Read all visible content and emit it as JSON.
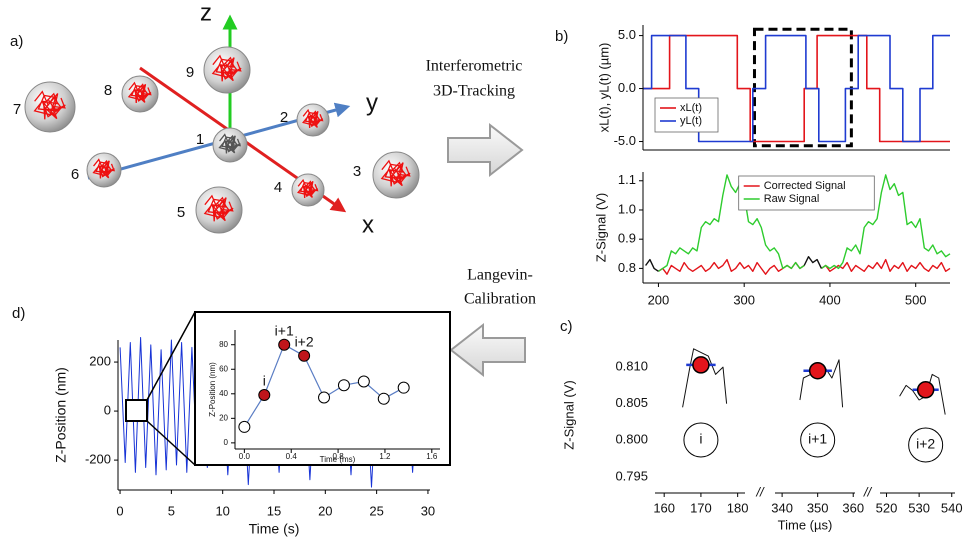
{
  "panels": [
    "a)",
    "b)",
    "c)",
    "d)"
  ],
  "diagram": {
    "axes": {
      "x": "x",
      "y": "y",
      "z": "z"
    },
    "nodes": [
      {
        "label": "1"
      },
      {
        "label": "2"
      },
      {
        "label": "3"
      },
      {
        "label": "4"
      },
      {
        "label": "5"
      },
      {
        "label": "6"
      },
      {
        "label": "7"
      },
      {
        "label": "8"
      },
      {
        "label": "9"
      }
    ]
  },
  "flow": [
    {
      "lines": [
        "Interferometric",
        "3D-Tracking"
      ]
    },
    {
      "lines": [
        "Langevin-",
        "Calibration"
      ]
    }
  ],
  "chart_data": [
    {
      "type": "line",
      "ylabel": "xL(t), yL(t) (µm)",
      "xlim": [
        182,
        540
      ],
      "ylim": [
        -5.8,
        6.0
      ],
      "yticks": [
        {
          "value": 5,
          "label": "5.0"
        },
        {
          "value": 0,
          "label": "0.0"
        },
        {
          "value": -5,
          "label": "-5.0"
        }
      ],
      "legend": "lower left",
      "highlight": {
        "x": [
          312,
          425
        ],
        "y": [
          -5.4,
          5.6
        ]
      },
      "series": [
        {
          "name": "xL(t)",
          "color": "#e3151b",
          "x": [
            182,
            213,
            213,
            292,
            292,
            307,
            307,
            370,
            370,
            385,
            385,
            443,
            443,
            458,
            458,
            540
          ],
          "values": [
            0,
            0,
            5,
            5,
            0,
            0,
            -5,
            -5,
            0,
            0,
            5,
            5,
            0,
            0,
            -5,
            -5
          ]
        },
        {
          "name": "yL(t)",
          "color": "#1f3bd1",
          "x": [
            182,
            192,
            192,
            232,
            232,
            247,
            247,
            310,
            310,
            325,
            325,
            372,
            372,
            387,
            387,
            418,
            418,
            433,
            433,
            470,
            470,
            485,
            485,
            505,
            505,
            520,
            520,
            540
          ],
          "values": [
            0,
            0,
            5,
            5,
            0,
            0,
            -5,
            -5,
            0,
            0,
            5,
            5,
            0,
            0,
            -5,
            -5,
            0,
            0,
            5,
            5,
            0,
            0,
            -5,
            -5,
            0,
            0,
            5,
            5
          ]
        }
      ]
    },
    {
      "type": "line",
      "ylabel": "Z-Signal (V)",
      "xlim": [
        182,
        540
      ],
      "ylim": [
        0.75,
        1.13
      ],
      "xticks": [
        200,
        300,
        400,
        500
      ],
      "yticks": [
        {
          "value": 0.8,
          "label": "0.8"
        },
        {
          "value": 0.9,
          "label": "0.9"
        },
        {
          "value": 1,
          "label": "1.0"
        },
        {
          "value": 1.1,
          "label": "1.1"
        }
      ],
      "legend": "upper center",
      "x": [
        185,
        190,
        195,
        200,
        205,
        210,
        215,
        220,
        225,
        230,
        235,
        240,
        245,
        250,
        255,
        260,
        265,
        270,
        275,
        280,
        285,
        290,
        295,
        300,
        305,
        310,
        315,
        320,
        325,
        330,
        335,
        340,
        345,
        350,
        355,
        360,
        365,
        370,
        375,
        380,
        385,
        390,
        395,
        400,
        405,
        410,
        415,
        420,
        425,
        430,
        435,
        440,
        445,
        450,
        455,
        460,
        465,
        470,
        475,
        480,
        485,
        490,
        495,
        500,
        505,
        510,
        515,
        520,
        525,
        530,
        535,
        540
      ],
      "series": [
        {
          "name": "Corrected Signal",
          "color": "#e3151b",
          "values": [
            null,
            null,
            null,
            0.79,
            0.8,
            0.78,
            0.81,
            0.8,
            0.79,
            0.82,
            0.8,
            0.79,
            0.8,
            0.81,
            0.79,
            0.8,
            0.82,
            0.8,
            0.81,
            0.83,
            0.79,
            0.8,
            0.82,
            0.8,
            0.81,
            0.79,
            0.82,
            0.8,
            0.78,
            0.8,
            0.81,
            0.79,
            0.8,
            0.81,
            0.8,
            0.82,
            0.8,
            0.81,
            null,
            null,
            null,
            0.8,
            0.81,
            0.79,
            0.8,
            0.81,
            0.8,
            0.82,
            0.79,
            0.81,
            0.8,
            0.79,
            0.81,
            0.8,
            0.82,
            0.8,
            0.83,
            0.79,
            0.81,
            0.8,
            0.82,
            0.79,
            0.81,
            0.8,
            0.82,
            0.8,
            0.79,
            0.81,
            0.8,
            0.82,
            0.79,
            0.8
          ]
        },
        {
          "name": "Raw Signal",
          "color": "#2ecc2e",
          "values": [
            null,
            null,
            null,
            0.79,
            0.8,
            0.81,
            0.86,
            0.85,
            0.87,
            0.86,
            0.85,
            0.87,
            0.86,
            0.94,
            0.96,
            0.95,
            0.97,
            0.96,
            1.05,
            1.12,
            1.08,
            1.06,
            1.09,
            1.05,
            0.96,
            0.95,
            0.97,
            0.94,
            0.88,
            0.86,
            0.87,
            0.85,
            0.8,
            0.81,
            0.8,
            0.82,
            0.8,
            0.81,
            null,
            null,
            null,
            0.8,
            0.81,
            0.8,
            0.81,
            0.8,
            0.82,
            0.87,
            0.86,
            0.88,
            0.85,
            0.94,
            0.96,
            0.95,
            0.97,
            1.06,
            1.12,
            1.07,
            1.09,
            1.05,
            1.06,
            0.95,
            0.96,
            0.94,
            0.97,
            0.87,
            0.86,
            0.88,
            0.85,
            0.86,
            0.84,
            0.85
          ]
        },
        {
          "color": "#111111",
          "values": [
            0.81,
            0.83,
            0.8,
            0.79,
            null,
            null,
            null,
            null,
            null,
            null,
            null,
            null,
            null,
            null,
            null,
            null,
            null,
            null,
            null,
            null,
            null,
            null,
            null,
            null,
            null,
            null,
            null,
            null,
            null,
            null,
            null,
            null,
            null,
            null,
            null,
            null,
            null,
            0.81,
            0.84,
            0.82,
            0.83,
            0.8,
            null,
            null,
            null,
            null,
            null,
            null,
            null,
            null,
            null,
            null,
            null,
            null,
            null,
            null,
            null,
            null,
            null,
            null,
            null,
            null,
            null,
            null,
            null,
            null,
            null,
            null,
            null,
            null,
            null,
            null
          ]
        }
      ]
    },
    {
      "type": "scatter",
      "ylabel": "Z-Signal (V)",
      "xlabel": "Time (µs)",
      "ylim": [
        0.7932,
        0.8137
      ],
      "yticks": [
        {
          "value": 0.81,
          "label": "0.810"
        },
        0.805,
        {
          "value": 0.8,
          "label": "0.800"
        },
        0.795
      ],
      "axis_break": "//",
      "segments": [
        {
          "xlim": [
            157.5,
            182
          ],
          "xticks": [
            160,
            170,
            180
          ]
        },
        {
          "xlim": [
            338,
            360.5
          ],
          "xticks": [
            340,
            350,
            360
          ]
        },
        {
          "xlim": [
            518,
            541
          ],
          "xticks": [
            520,
            530,
            540
          ]
        }
      ],
      "traces": [
        {
          "x": [
            165,
            167,
            168,
            170,
            172,
            174,
            176,
            177
          ],
          "values": [
            0.8045,
            0.81,
            0.8125,
            0.812,
            0.8115,
            0.809,
            0.81,
            0.805
          ]
        },
        {
          "x": [
            345,
            346,
            348,
            350,
            352,
            354,
            356,
            357
          ],
          "values": [
            0.8055,
            0.8085,
            0.809,
            0.8102,
            0.81,
            0.8085,
            0.811,
            0.8045
          ]
        },
        {
          "x": [
            524,
            526,
            528,
            530,
            532,
            534,
            536,
            538
          ],
          "values": [
            0.806,
            0.8075,
            0.8068,
            0.8055,
            0.806,
            0.809,
            0.8085,
            0.8035
          ]
        }
      ],
      "trace_color": "#111111",
      "color": "#e3151b",
      "error_color": "#1f3bd1",
      "x": [
        170,
        350,
        532
      ],
      "values": [
        0.8103,
        0.8095,
        0.8069
      ],
      "xerr": [
        4,
        4,
        4
      ],
      "point_labels": [
        "i",
        "i+1",
        "i+2"
      ]
    },
    {
      "type": "line",
      "ylabel": "Z-Position (nm)",
      "xlabel": "Time (s)",
      "xlim": [
        -0.2,
        30.2
      ],
      "ylim": [
        -322,
        290
      ],
      "xticks": [
        0,
        5,
        10,
        15,
        20,
        25,
        30
      ],
      "yticks": [
        -200,
        0,
        200
      ],
      "x": [
        0,
        0.5,
        1,
        1.5,
        2,
        2.5,
        3,
        3.5,
        4,
        4.5,
        5,
        5.5,
        6,
        6.5,
        7,
        7.5,
        8,
        8.5,
        9,
        9.5,
        10,
        10.5,
        11,
        11.5,
        12,
        12.5,
        13,
        13.5,
        14,
        14.5,
        15,
        15.5,
        16,
        16.5,
        17,
        17.5,
        18,
        18.5,
        19,
        19.5,
        20,
        20.5,
        21,
        21.5,
        22,
        22.5,
        23,
        23.5,
        24,
        24.5,
        25,
        25.5,
        26,
        26.5,
        27,
        27.5,
        28,
        28.5,
        29,
        29.5,
        30
      ],
      "series": [
        {
          "color": "#1733d6",
          "values": [
            260,
            -210,
            280,
            -250,
            300,
            -230,
            270,
            -260,
            250,
            -240,
            290,
            -220,
            280,
            -250,
            260,
            -200,
            120,
            -230,
            90,
            -150,
            100,
            -260,
            80,
            -120,
            110,
            -300,
            90,
            -160,
            100,
            -140,
            85,
            -250,
            95,
            -130,
            110,
            -170,
            80,
            -280,
            100,
            -150,
            90,
            -200,
            120,
            -140,
            85,
            -260,
            95,
            -150,
            100,
            -310,
            90,
            -130,
            110,
            -220,
            80,
            -160,
            100,
            -250,
            90,
            -140,
            -210
          ]
        }
      ]
    },
    {
      "type": "line",
      "ylabel": "Z-Position (nm)",
      "xlabel": "Time (ms)",
      "xlim": [
        -0.08,
        1.67
      ],
      "ylim": [
        -5,
        92
      ],
      "xticks": [
        {
          "value": 0,
          "label": "0.0"
        },
        0.4,
        0.8,
        1.2,
        1.6
      ],
      "yticks": [
        0,
        20,
        40,
        60,
        80
      ],
      "x": [
        0,
        0.17,
        0.34,
        0.51,
        0.68,
        0.85,
        1.02,
        1.19,
        1.36
      ],
      "series": [
        {
          "color": "#5a7dc4",
          "values": [
            13,
            39,
            80,
            71,
            37,
            47,
            50,
            36,
            45
          ],
          "marker_colors": [
            "#ffffff",
            "#c0151b",
            "#c0151b",
            "#c0151b",
            "#ffffff",
            "#ffffff",
            "#ffffff",
            "#ffffff",
            "#ffffff"
          ],
          "point_labels": [
            null,
            "i",
            "i+1",
            "i+2",
            null,
            null,
            null,
            null,
            null
          ]
        }
      ]
    }
  ]
}
